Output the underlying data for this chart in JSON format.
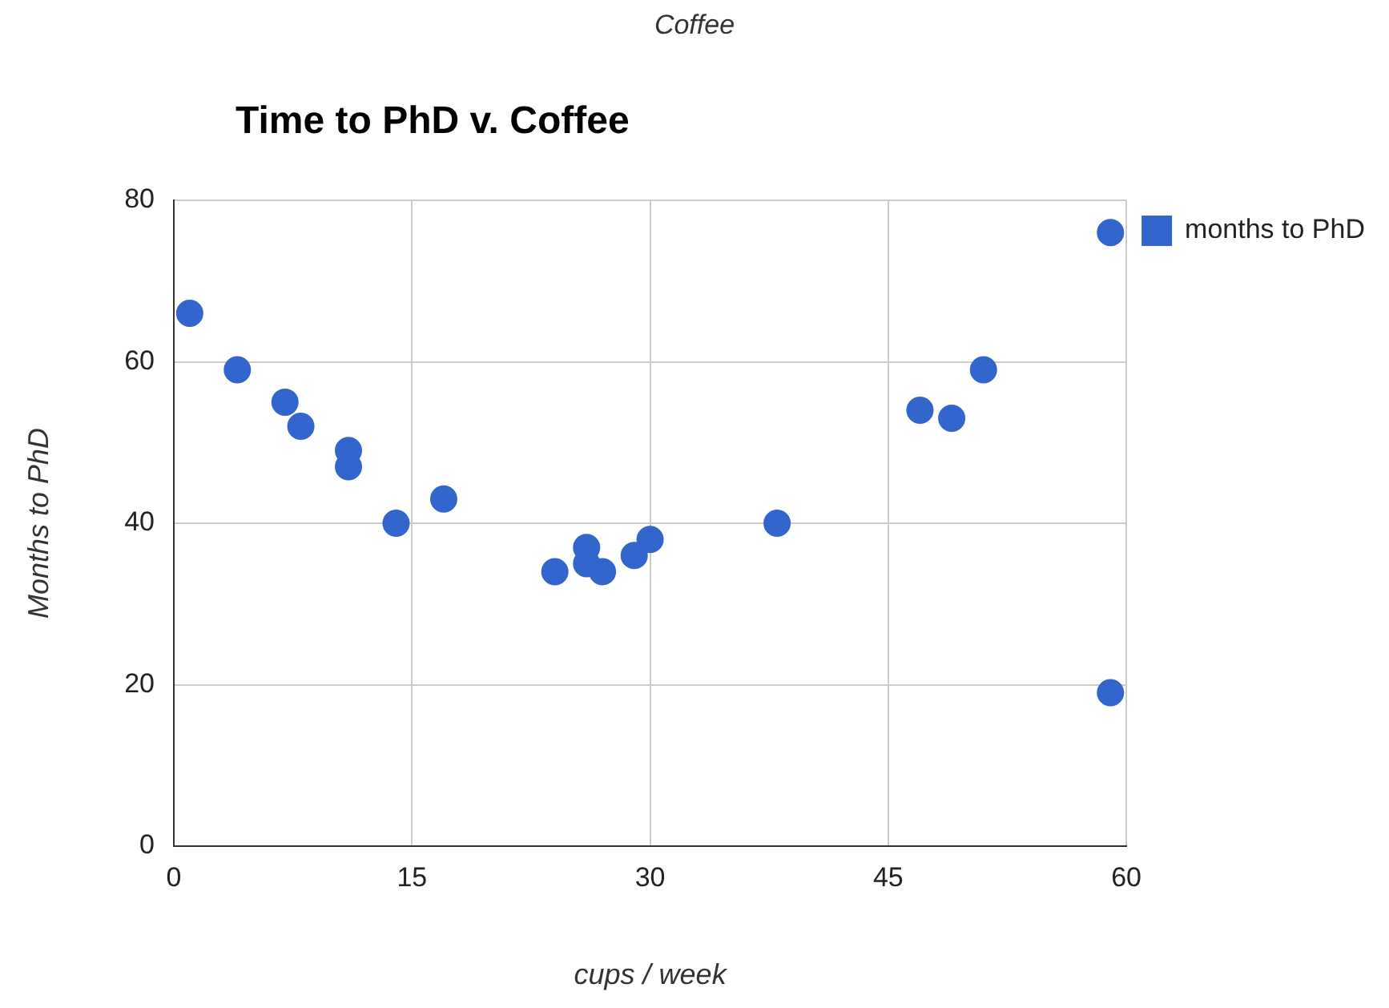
{
  "chart_data": {
    "type": "scatter",
    "title": "Time to PhD v. Coffee",
    "subtitle": "Coffee",
    "xlabel": "cups / week",
    "ylabel": "Months to PhD",
    "x": [
      1,
      4,
      7,
      8,
      11,
      11,
      14,
      17,
      24,
      26,
      26,
      27,
      29,
      30,
      38,
      47,
      49,
      51,
      59,
      59
    ],
    "series": [
      {
        "name": "months to PhD",
        "color": "#3366cc",
        "values": [
          66,
          59,
          55,
          52,
          49,
          47,
          40,
          43,
          34,
          37,
          35,
          34,
          36,
          38,
          40,
          54,
          53,
          59,
          76,
          19
        ]
      }
    ],
    "xlim": [
      0,
      60
    ],
    "xticks": [
      0,
      15,
      30,
      45,
      60
    ],
    "ylim": [
      0,
      80
    ],
    "yticks": [
      0,
      20,
      40,
      60,
      80
    ],
    "grid": true,
    "legend": "top right",
    "marker": "circle"
  }
}
